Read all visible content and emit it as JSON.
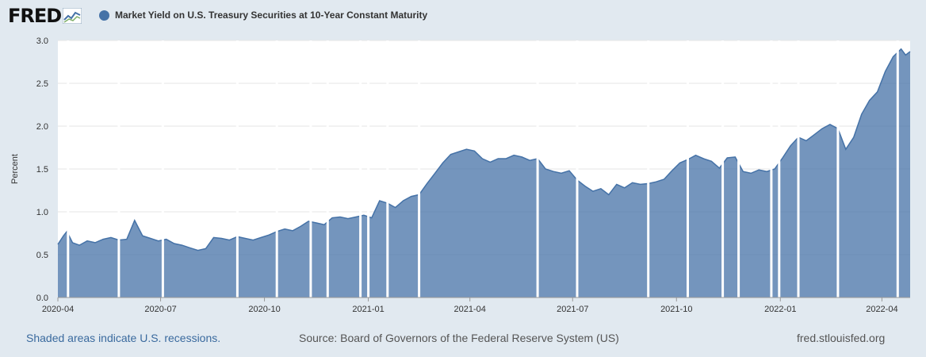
{
  "header": {
    "logo_text": "FRED",
    "series_title": "Market Yield on U.S. Treasury Securities at 10-Year Constant Maturity"
  },
  "colors": {
    "series": "#4572a7",
    "background": "#e1e9f0",
    "plot_background": "#ffffff",
    "recession_note": "#3a6a9e"
  },
  "footer": {
    "recessions_note": "Shaded areas indicate U.S. recessions.",
    "source": "Source: Board of Governors of the Federal Reserve System (US)",
    "site": "fred.stlouisfed.org"
  },
  "chart_data": {
    "type": "area",
    "title": "Market Yield on U.S. Treasury Securities at 10-Year Constant Maturity",
    "xlabel": "",
    "ylabel": "Percent",
    "ylim": [
      0,
      3.0
    ],
    "xlim": [
      "2020-04-01",
      "2022-04-26"
    ],
    "yticks": [
      "0.0",
      "0.5",
      "1.0",
      "1.5",
      "2.0",
      "2.5",
      "3.0"
    ],
    "xticks": [
      "2020-04",
      "2020-07",
      "2020-10",
      "2021-01",
      "2021-04",
      "2021-07",
      "2021-10",
      "2022-01",
      "2022-04"
    ],
    "grid": true,
    "legend": "top-left",
    "series": [
      {
        "name": "Market Yield on U.S. Treasury Securities at 10-Year Constant Maturity",
        "x": [
          "2020-04-01",
          "2020-04-06",
          "2020-04-09",
          "2020-04-14",
          "2020-04-20",
          "2020-04-27",
          "2020-05-04",
          "2020-05-11",
          "2020-05-18",
          "2020-05-25",
          "2020-06-01",
          "2020-06-08",
          "2020-06-15",
          "2020-06-22",
          "2020-06-29",
          "2020-07-06",
          "2020-07-13",
          "2020-07-20",
          "2020-07-27",
          "2020-08-03",
          "2020-08-10",
          "2020-08-17",
          "2020-08-24",
          "2020-08-31",
          "2020-09-07",
          "2020-09-14",
          "2020-09-21",
          "2020-09-28",
          "2020-10-05",
          "2020-10-12",
          "2020-10-19",
          "2020-10-26",
          "2020-11-02",
          "2020-11-09",
          "2020-11-16",
          "2020-11-23",
          "2020-11-30",
          "2020-12-07",
          "2020-12-14",
          "2020-12-21",
          "2020-12-28",
          "2021-01-04",
          "2021-01-11",
          "2021-01-18",
          "2021-01-25",
          "2021-02-01",
          "2021-02-08",
          "2021-02-15",
          "2021-02-22",
          "2021-03-01",
          "2021-03-08",
          "2021-03-15",
          "2021-03-22",
          "2021-03-29",
          "2021-04-05",
          "2021-04-12",
          "2021-04-19",
          "2021-04-26",
          "2021-05-03",
          "2021-05-10",
          "2021-05-17",
          "2021-05-24",
          "2021-05-31",
          "2021-06-07",
          "2021-06-14",
          "2021-06-21",
          "2021-06-28",
          "2021-07-05",
          "2021-07-12",
          "2021-07-19",
          "2021-07-26",
          "2021-08-02",
          "2021-08-09",
          "2021-08-16",
          "2021-08-23",
          "2021-08-30",
          "2021-09-06",
          "2021-09-13",
          "2021-09-20",
          "2021-09-27",
          "2021-10-04",
          "2021-10-11",
          "2021-10-18",
          "2021-10-25",
          "2021-11-01",
          "2021-11-08",
          "2021-11-15",
          "2021-11-22",
          "2021-11-29",
          "2021-12-06",
          "2021-12-13",
          "2021-12-20",
          "2021-12-27",
          "2022-01-03",
          "2022-01-10",
          "2022-01-17",
          "2022-01-24",
          "2022-01-31",
          "2022-02-07",
          "2022-02-14",
          "2022-02-21",
          "2022-02-28",
          "2022-03-07",
          "2022-03-14",
          "2022-03-21",
          "2022-03-28",
          "2022-04-04",
          "2022-04-11",
          "2022-04-18",
          "2022-04-22",
          "2022-04-26"
        ],
        "y": [
          0.62,
          0.72,
          0.77,
          0.64,
          0.61,
          0.66,
          0.64,
          0.68,
          0.7,
          0.67,
          0.68,
          0.9,
          0.72,
          0.69,
          0.66,
          0.68,
          0.63,
          0.61,
          0.58,
          0.55,
          0.57,
          0.7,
          0.69,
          0.67,
          0.71,
          0.69,
          0.67,
          0.7,
          0.73,
          0.77,
          0.8,
          0.78,
          0.83,
          0.89,
          0.87,
          0.85,
          0.93,
          0.94,
          0.92,
          0.94,
          0.96,
          0.93,
          1.13,
          1.1,
          1.05,
          1.13,
          1.18,
          1.2,
          1.33,
          1.45,
          1.57,
          1.67,
          1.7,
          1.73,
          1.71,
          1.62,
          1.58,
          1.62,
          1.62,
          1.66,
          1.64,
          1.6,
          1.62,
          1.5,
          1.47,
          1.45,
          1.48,
          1.37,
          1.3,
          1.24,
          1.27,
          1.2,
          1.32,
          1.28,
          1.34,
          1.32,
          1.33,
          1.35,
          1.38,
          1.48,
          1.57,
          1.61,
          1.66,
          1.62,
          1.59,
          1.51,
          1.63,
          1.64,
          1.47,
          1.45,
          1.49,
          1.47,
          1.5,
          1.63,
          1.77,
          1.87,
          1.83,
          1.9,
          1.97,
          2.02,
          1.97,
          1.73,
          1.87,
          2.14,
          2.3,
          2.4,
          2.64,
          2.81,
          2.9,
          2.83,
          2.87
        ]
      }
    ],
    "gaps": [
      "2020-04-10",
      "2020-05-25",
      "2020-07-03",
      "2020-09-07",
      "2020-10-12",
      "2020-11-11",
      "2020-11-26",
      "2020-12-25",
      "2021-01-01",
      "2021-01-18",
      "2021-02-15",
      "2021-05-31",
      "2021-07-05",
      "2021-09-06",
      "2021-10-11",
      "2021-11-11",
      "2021-11-25",
      "2021-12-24",
      "2021-12-31",
      "2022-01-17",
      "2022-02-21",
      "2022-04-15"
    ],
    "recessions": []
  }
}
